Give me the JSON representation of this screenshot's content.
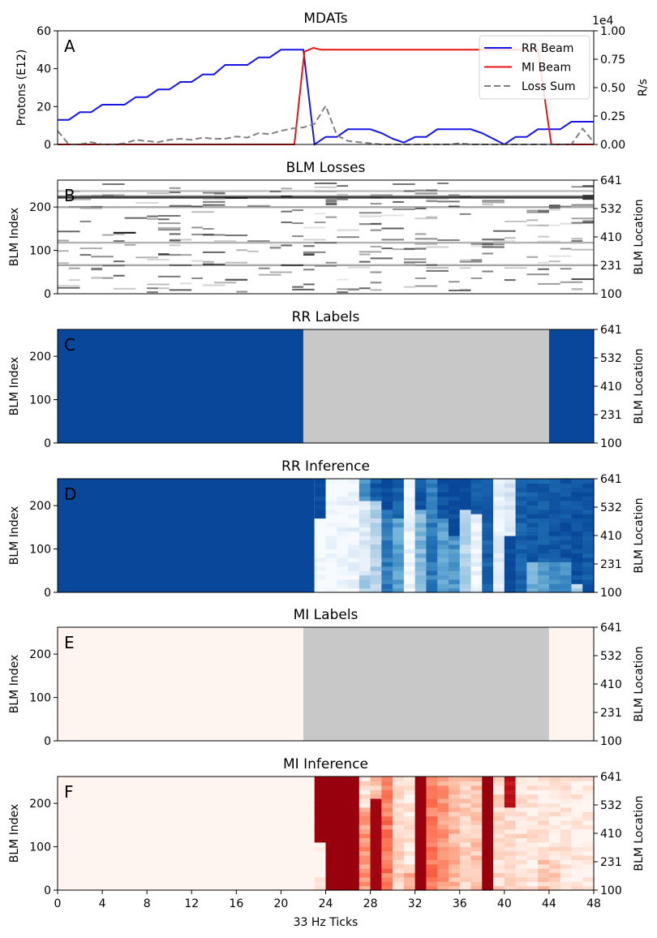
{
  "chart_data": [
    {
      "type": "line",
      "panel_letter": "A",
      "title": "MDATs",
      "ylabel": "Protons (E12)",
      "ylim": [
        0,
        60
      ],
      "yticks": [
        "0",
        "20",
        "40",
        "60"
      ],
      "right_ylabel": "R/s",
      "right_ylim": [
        0,
        1.0
      ],
      "right_yticks": [
        "0.00",
        "0.25",
        "0.50",
        "0.75",
        "1.00"
      ],
      "right_offset_label": "1e4",
      "xlim": [
        0,
        48
      ],
      "legend_position": "top-right",
      "series": [
        {
          "name": "RR Beam",
          "color": "#1515e6",
          "style": "solid",
          "axis": "left",
          "x": [
            0,
            1,
            2,
            3,
            4,
            5,
            6,
            7,
            8,
            9,
            10,
            11,
            12,
            13,
            14,
            15,
            16,
            17,
            18,
            19,
            20,
            21,
            22,
            23,
            24,
            25,
            26,
            27,
            28,
            29,
            30,
            31,
            32,
            33,
            34,
            35,
            36,
            37,
            38,
            39,
            40,
            41,
            42,
            43,
            44,
            45,
            46,
            47,
            48
          ],
          "y": [
            13,
            13,
            17,
            17,
            21,
            21,
            21,
            25,
            25,
            29,
            29,
            33,
            33,
            37,
            37,
            42,
            42,
            42,
            46,
            46,
            50,
            50,
            50,
            0,
            4,
            4,
            8,
            8,
            8,
            6,
            3,
            1,
            4,
            4,
            8,
            8,
            8,
            8,
            6,
            3,
            0,
            4,
            4,
            8,
            8,
            8,
            12,
            12,
            12
          ]
        },
        {
          "name": "MI Beam",
          "color": "#e61515",
          "style": "solid",
          "axis": "left",
          "x": [
            0,
            21.2,
            22.1,
            22.9,
            23.6,
            24,
            43,
            44.2,
            48
          ],
          "y": [
            0,
            0,
            49,
            51,
            50,
            50,
            50,
            0,
            0
          ]
        },
        {
          "name": "Loss Sum",
          "color": "#808080",
          "style": "dashed",
          "axis": "right",
          "x": [
            0,
            1,
            2,
            3,
            4,
            5,
            6,
            7,
            8,
            9,
            10,
            11,
            12,
            13,
            14,
            15,
            16,
            17,
            18,
            19,
            20,
            21,
            22,
            23,
            24,
            25,
            26,
            27,
            28,
            29,
            30,
            31,
            32,
            33,
            34,
            35,
            36,
            37,
            38,
            39,
            40,
            41,
            42,
            43,
            44,
            45,
            46,
            47,
            48
          ],
          "y": [
            0.12,
            0.0,
            0.0,
            0.02,
            0.0,
            0.0,
            0.01,
            0.04,
            0.03,
            0.02,
            0.04,
            0.05,
            0.04,
            0.06,
            0.05,
            0.05,
            0.07,
            0.06,
            0.1,
            0.09,
            0.12,
            0.14,
            0.15,
            0.18,
            0.34,
            0.08,
            0.03,
            0.02,
            0.01,
            0.0,
            0.0,
            0.0,
            0.0,
            0.0,
            0.0,
            0.0,
            0.01,
            0.0,
            0.0,
            0.0,
            0.0,
            0.0,
            0.0,
            0.0,
            0.0,
            0.0,
            0.0,
            0.14,
            0.02
          ]
        }
      ]
    },
    {
      "type": "heatmap",
      "panel_letter": "B",
      "title": "BLM Losses",
      "ylabel": "BLM Index",
      "yticks": [
        "0",
        "100",
        "200"
      ],
      "right_ylabel": "BLM Location",
      "right_yticks": [
        "100",
        "231",
        "410",
        "532",
        "641"
      ],
      "colormap": "Greys",
      "note_data": "sparse horizontal loss streaks across BLM index 0-260"
    },
    {
      "type": "heatmap",
      "panel_letter": "C",
      "title": "RR Labels",
      "ylabel": "BLM Index",
      "yticks": [
        "0",
        "100",
        "200"
      ],
      "right_ylabel": "BLM Location",
      "right_yticks": [
        "100",
        "231",
        "410",
        "532",
        "641"
      ],
      "x_bands": [
        {
          "x0": 0,
          "x1": 22,
          "color": "#08479a"
        },
        {
          "x0": 22,
          "x1": 44,
          "color": "#c8c8c8"
        },
        {
          "x0": 44,
          "x1": 48,
          "color": "#08479a"
        }
      ]
    },
    {
      "type": "heatmap",
      "panel_letter": "D",
      "title": "RR Inference",
      "ylabel": "BLM Index",
      "yticks": [
        "0",
        "100",
        "200"
      ],
      "right_ylabel": "BLM Location",
      "right_yticks": [
        "100",
        "231",
        "410",
        "532",
        "641"
      ],
      "colormap": "Blues"
    },
    {
      "type": "heatmap",
      "panel_letter": "E",
      "title": "MI Labels",
      "ylabel": "BLM Index",
      "yticks": [
        "0",
        "100",
        "200"
      ],
      "right_ylabel": "BLM Location",
      "right_yticks": [
        "100",
        "231",
        "410",
        "532",
        "641"
      ],
      "x_bands": [
        {
          "x0": 0,
          "x1": 22,
          "color": "#fff5f0"
        },
        {
          "x0": 22,
          "x1": 44,
          "color": "#c8c8c8"
        },
        {
          "x0": 44,
          "x1": 48,
          "color": "#fff5f0"
        }
      ]
    },
    {
      "type": "heatmap",
      "panel_letter": "F",
      "title": "MI Inference",
      "ylabel": "BLM Index",
      "yticks": [
        "0",
        "100",
        "200"
      ],
      "right_ylabel": "BLM Location",
      "right_yticks": [
        "100",
        "231",
        "410",
        "532",
        "641"
      ],
      "colormap": "Reds",
      "xlabel": "33 Hz Ticks",
      "xticks": [
        "0",
        "4",
        "8",
        "12",
        "16",
        "20",
        "24",
        "28",
        "32",
        "36",
        "40",
        "44",
        "48"
      ]
    }
  ]
}
